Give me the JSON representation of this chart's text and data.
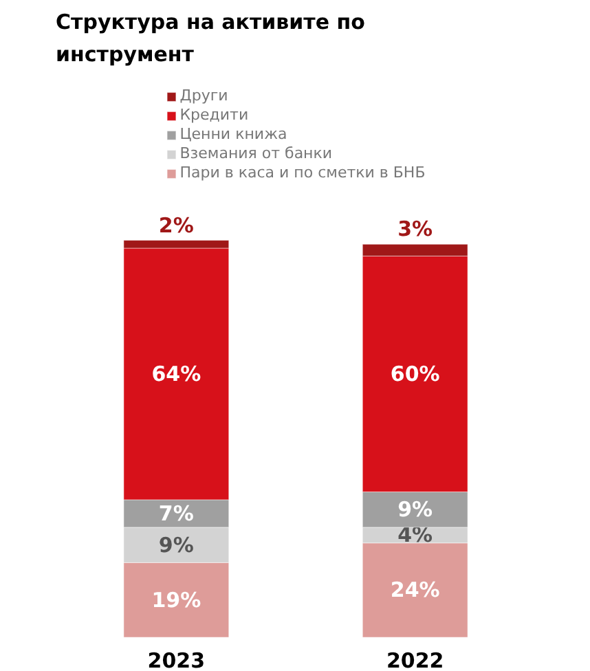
{
  "chart_data": {
    "type": "bar",
    "title": "Структура на активите по инструмент",
    "categories": [
      "2023",
      "2022"
    ],
    "stacked": true,
    "legend": "top",
    "series": [
      {
        "name": "Пари в каса и по сметки в БНБ",
        "color": "#de9c99",
        "values": [
          19,
          24
        ],
        "value_labels": [
          "19%",
          "24%"
        ]
      },
      {
        "name": "Вземания от банки",
        "color": "#d3d3d3",
        "values": [
          9,
          4
        ],
        "value_labels": [
          "9%",
          "4%"
        ]
      },
      {
        "name": "Ценни книжа",
        "color": "#a0a0a0",
        "values": [
          7,
          9
        ],
        "value_labels": [
          "7%",
          "9%"
        ]
      },
      {
        "name": "Кредити",
        "color": "#d7111a",
        "values": [
          64,
          60
        ],
        "value_labels": [
          "64%",
          "60%"
        ]
      },
      {
        "name": "Други",
        "color": "#a01818",
        "values": [
          2,
          3
        ],
        "value_labels": [
          "2%",
          "3%"
        ]
      }
    ]
  }
}
